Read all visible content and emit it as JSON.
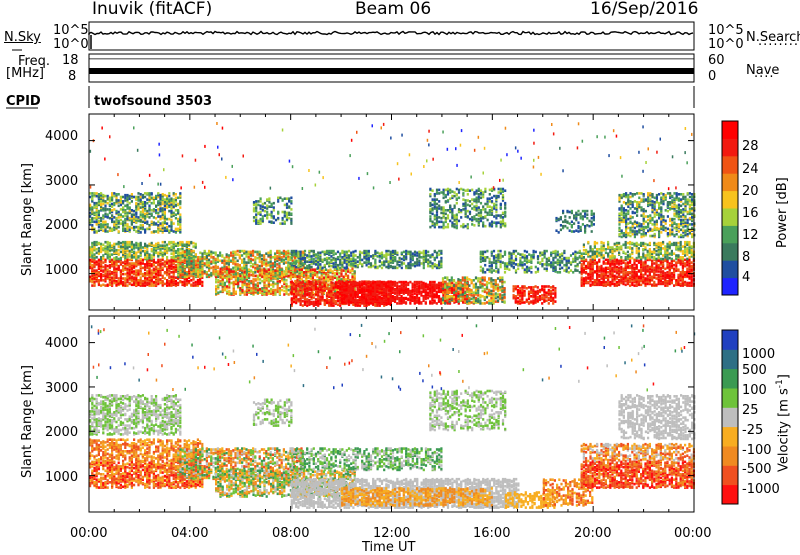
{
  "header": {
    "station": "Inuvik (fitACF)",
    "beam": "Beam 06",
    "date": "16/Sep/2016"
  },
  "top_panels": {
    "nsky_label": "N.Sky",
    "nsky_ticks": [
      "10^5",
      "10^0"
    ],
    "nsearch_label": "N.Search",
    "nsearch_ticks": [
      "10^5",
      "10^0"
    ],
    "freq_label": "Freq.",
    "freq_unit": "[MHz]",
    "freq_ticks": [
      "18",
      "8"
    ],
    "nave_label": "Nave",
    "nave_ticks": [
      "60",
      "0"
    ],
    "cpid_label": "CPID",
    "cpid_value": "twofsound 3503"
  },
  "colors": {
    "power": [
      "#1f24ff",
      "#1f4ea0",
      "#3a7a5e",
      "#4aa05a",
      "#a6d23a",
      "#f7c31e",
      "#f08a18",
      "#f05414",
      "#f21a10",
      "#ff0000"
    ],
    "velocity": [
      "#ff1010",
      "#f05020",
      "#f08a20",
      "#f8ad20",
      "#bebebe",
      "#6ec33a",
      "#3a9a52",
      "#2e6f85",
      "#2040c0"
    ]
  },
  "chart_data": [
    {
      "type": "heatmap",
      "panel": "power",
      "ylabel": "Slant Range [km]",
      "y_ticks": [
        "1000",
        "2000",
        "3000",
        "4000"
      ],
      "ylim": [
        180,
        4600
      ],
      "xlim": [
        0,
        24
      ],
      "colorbar": {
        "label": "Power [dB]",
        "ticks": [
          "4",
          "8",
          "12",
          "16",
          "20",
          "24",
          "28"
        ],
        "range": [
          0,
          32
        ]
      }
    },
    {
      "type": "heatmap",
      "panel": "velocity",
      "xlabel": "Time UT",
      "x_ticks": [
        "00:00",
        "04:00",
        "08:00",
        "12:00",
        "16:00",
        "20:00",
        "00:00"
      ],
      "ylabel": "Slant Range [km]",
      "y_ticks": [
        "1000",
        "2000",
        "3000",
        "4000"
      ],
      "ylim": [
        180,
        4600
      ],
      "xlim": [
        0,
        24
      ],
      "colorbar": {
        "label": "Velocity [m s",
        "label_sup": "-1",
        "label_end": "]",
        "ticks": [
          "1000",
          "500",
          "100",
          "25",
          "-25",
          "-100",
          "-500",
          "-1000"
        ]
      }
    }
  ]
}
